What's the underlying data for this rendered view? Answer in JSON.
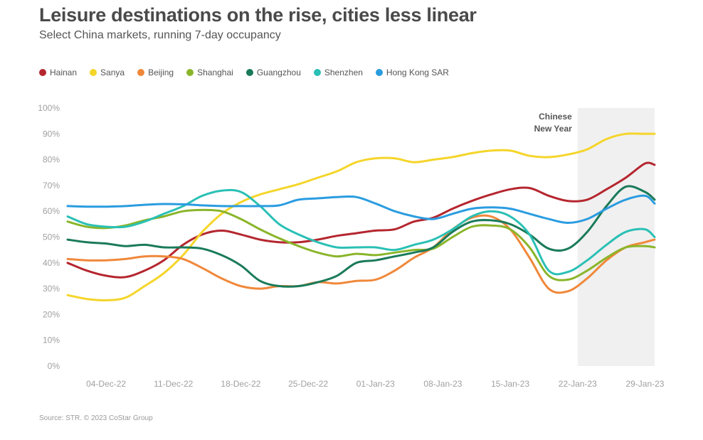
{
  "header": {
    "title": "Leisure destinations on the rise, cities less linear",
    "subtitle": "Select China markets, running 7-day occupancy"
  },
  "footer": {
    "source": "Source: STR. © 2023 CoStar Group"
  },
  "chart_data": {
    "type": "line",
    "title": "Leisure destinations on the rise, cities less linear",
    "subtitle": "Select China markets, running 7-day occupancy",
    "xlabel": "",
    "ylabel": "",
    "x_start": "30-Nov-22",
    "x_end": "30-Jan-23",
    "x_ticks": [
      "04-Dec-22",
      "11-Dec-22",
      "18-Dec-22",
      "25-Dec-22",
      "01-Jan-23",
      "08-Jan-23",
      "15-Jan-23",
      "22-Jan-23",
      "29-Jan-23"
    ],
    "y_ticks": [
      "0%",
      "10%",
      "20%",
      "30%",
      "40%",
      "50%",
      "60%",
      "70%",
      "80%",
      "90%",
      "100%"
    ],
    "ylim": [
      0,
      100
    ],
    "grid": false,
    "legend_position": "top-left",
    "annotation": {
      "text_line1": "Chinese",
      "text_line2": "New Year",
      "start": "22-Jan-23",
      "end": "30-Jan-23",
      "shade_color": "#f0f0f0"
    },
    "dates": [
      "30-Nov-22",
      "02-Dec-22",
      "04-Dec-22",
      "06-Dec-22",
      "08-Dec-22",
      "10-Dec-22",
      "12-Dec-22",
      "14-Dec-22",
      "16-Dec-22",
      "18-Dec-22",
      "20-Dec-22",
      "22-Dec-22",
      "24-Dec-22",
      "26-Dec-22",
      "28-Dec-22",
      "30-Dec-22",
      "01-Jan-23",
      "03-Jan-23",
      "05-Jan-23",
      "07-Jan-23",
      "09-Jan-23",
      "11-Jan-23",
      "13-Jan-23",
      "15-Jan-23",
      "17-Jan-23",
      "19-Jan-23",
      "21-Jan-23",
      "23-Jan-23",
      "25-Jan-23",
      "27-Jan-23",
      "29-Jan-23",
      "30-Jan-23"
    ],
    "series": [
      {
        "name": "Hainan",
        "color": "#b5262f",
        "values": [
          40,
          37,
          35,
          34.5,
          37,
          41,
          47,
          51,
          52.5,
          51,
          49,
          48,
          48,
          49,
          50.5,
          51.5,
          52.5,
          53,
          56,
          57.5,
          61,
          64,
          66.5,
          68.5,
          69,
          66,
          64,
          64.5,
          68.5,
          73,
          78.5,
          78
        ]
      },
      {
        "name": "Sanya",
        "color": "#f5d52a",
        "values": [
          27.5,
          26,
          25.5,
          26.5,
          31,
          36,
          43,
          52,
          59,
          63.5,
          66.5,
          68.5,
          70.5,
          73,
          75.5,
          79,
          80.5,
          80.5,
          79,
          80,
          81,
          82.5,
          83.5,
          83.5,
          81.5,
          81,
          82,
          84,
          88,
          90,
          90,
          90
        ]
      },
      {
        "name": "Beijing",
        "color": "#f0883a",
        "values": [
          41.5,
          41,
          41,
          41.5,
          42.5,
          42.5,
          41.5,
          38,
          34,
          31,
          30,
          31,
          31,
          32.5,
          32,
          33,
          33.5,
          37,
          42,
          46,
          53,
          57.5,
          58,
          53,
          42,
          30,
          29,
          34,
          41,
          46,
          48,
          49
        ]
      },
      {
        "name": "Shanghai",
        "color": "#8ab52a",
        "values": [
          56,
          54,
          53.5,
          54.5,
          56.5,
          58,
          60,
          60.5,
          60,
          57,
          53,
          49.5,
          46.5,
          44,
          42.5,
          43.5,
          43,
          44,
          45,
          45.5,
          50,
          54,
          54.5,
          53,
          46,
          35,
          33.5,
          37,
          42,
          46,
          46.5,
          46
        ]
      },
      {
        "name": "Guangzhou",
        "color": "#1a7a5a",
        "values": [
          49,
          48,
          47.5,
          46.5,
          47,
          46,
          46,
          45.5,
          43,
          39,
          33,
          31,
          31,
          32.5,
          35,
          40,
          41,
          42.5,
          44,
          46,
          52,
          56,
          56.5,
          55,
          51,
          45.5,
          45.5,
          52,
          62,
          69.5,
          67.5,
          64.5
        ]
      },
      {
        "name": "Shenzhen",
        "color": "#2ac0b5",
        "values": [
          58,
          55,
          54,
          54,
          56,
          59,
          62,
          66,
          68,
          67.5,
          62,
          55,
          51,
          48,
          46,
          46,
          46,
          45,
          47,
          49,
          53,
          58,
          60,
          58,
          51,
          37,
          36.5,
          41,
          47,
          52,
          53,
          50
        ]
      },
      {
        "name": "Hong Kong SAR",
        "color": "#2a9ce0",
        "values": [
          62,
          61.8,
          61.8,
          62,
          62.5,
          62.8,
          62.7,
          62.3,
          62,
          62,
          62,
          62.3,
          64.5,
          65,
          65.5,
          65.5,
          63,
          60,
          58,
          57,
          59,
          61,
          61.5,
          61,
          59,
          57,
          55.5,
          57,
          61,
          64.5,
          66,
          63
        ]
      }
    ]
  }
}
